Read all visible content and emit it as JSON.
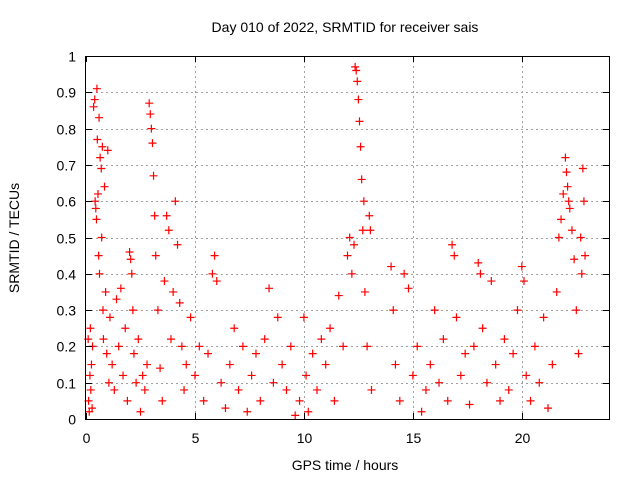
{
  "chart_data": {
    "type": "scatter",
    "title": "Day 010 of 2022, SRMTID for receiver sais",
    "xlabel": "GPS time / hours",
    "ylabel": "SRMTID / TECUs",
    "xlim": [
      0,
      24
    ],
    "ylim": [
      0,
      1
    ],
    "x_ticks": [
      0,
      5,
      10,
      15,
      20
    ],
    "x_tick_labels": [
      "0",
      "5",
      "10",
      "15",
      "20"
    ],
    "y_ticks": [
      0,
      0.1,
      0.2,
      0.3,
      0.4,
      0.5,
      0.6,
      0.7,
      0.8,
      0.9,
      1
    ],
    "y_tick_labels": [
      "0",
      "0.1",
      "0.2",
      "0.3",
      "0.4",
      "0.5",
      "0.6",
      "0.7",
      "0.8",
      "0.9",
      "1"
    ],
    "grid": true,
    "marker": "plus",
    "color": "#ff0000",
    "series": [
      {
        "name": "SRMTID",
        "points": [
          [
            0.1,
            0.22
          ],
          [
            0.12,
            0.05
          ],
          [
            0.15,
            0.02
          ],
          [
            0.18,
            0.12
          ],
          [
            0.2,
            0.25
          ],
          [
            0.22,
            0.08
          ],
          [
            0.25,
            0.15
          ],
          [
            0.28,
            0.03
          ],
          [
            0.3,
            0.2
          ],
          [
            0.35,
            0.86
          ],
          [
            0.4,
            0.88
          ],
          [
            0.42,
            0.6
          ],
          [
            0.45,
            0.58
          ],
          [
            0.48,
            0.55
          ],
          [
            0.5,
            0.91
          ],
          [
            0.52,
            0.77
          ],
          [
            0.55,
            0.62
          ],
          [
            0.58,
            0.45
          ],
          [
            0.6,
            0.83
          ],
          [
            0.62,
            0.4
          ],
          [
            0.65,
            0.72
          ],
          [
            0.7,
            0.69
          ],
          [
            0.72,
            0.5
          ],
          [
            0.75,
            0.75
          ],
          [
            0.78,
            0.3
          ],
          [
            0.8,
            0.22
          ],
          [
            0.85,
            0.64
          ],
          [
            0.9,
            0.35
          ],
          [
            0.95,
            0.18
          ],
          [
            1.0,
            0.74
          ],
          [
            1.05,
            0.1
          ],
          [
            1.1,
            0.28
          ],
          [
            1.2,
            0.15
          ],
          [
            1.3,
            0.08
          ],
          [
            1.4,
            0.33
          ],
          [
            1.5,
            0.2
          ],
          [
            1.6,
            0.36
          ],
          [
            1.7,
            0.12
          ],
          [
            1.8,
            0.25
          ],
          [
            1.9,
            0.05
          ],
          [
            2.0,
            0.46
          ],
          [
            2.05,
            0.44
          ],
          [
            2.1,
            0.4
          ],
          [
            2.15,
            0.3
          ],
          [
            2.2,
            0.18
          ],
          [
            2.3,
            0.1
          ],
          [
            2.4,
            0.22
          ],
          [
            2.5,
            0.02
          ],
          [
            2.6,
            0.12
          ],
          [
            2.7,
            0.08
          ],
          [
            2.8,
            0.15
          ],
          [
            2.9,
            0.87
          ],
          [
            2.95,
            0.84
          ],
          [
            3.0,
            0.8
          ],
          [
            3.05,
            0.76
          ],
          [
            3.1,
            0.67
          ],
          [
            3.15,
            0.56
          ],
          [
            3.2,
            0.45
          ],
          [
            3.3,
            0.3
          ],
          [
            3.4,
            0.14
          ],
          [
            3.5,
            0.05
          ],
          [
            3.6,
            0.38
          ],
          [
            3.7,
            0.56
          ],
          [
            3.8,
            0.52
          ],
          [
            3.9,
            0.22
          ],
          [
            4.0,
            0.35
          ],
          [
            4.1,
            0.6
          ],
          [
            4.2,
            0.48
          ],
          [
            4.3,
            0.32
          ],
          [
            4.4,
            0.2
          ],
          [
            4.5,
            0.08
          ],
          [
            4.6,
            0.15
          ],
          [
            4.8,
            0.28
          ],
          [
            5.0,
            0.12
          ],
          [
            5.2,
            0.2
          ],
          [
            5.4,
            0.05
          ],
          [
            5.6,
            0.18
          ],
          [
            5.8,
            0.4
          ],
          [
            5.9,
            0.45
          ],
          [
            6.0,
            0.38
          ],
          [
            6.2,
            0.1
          ],
          [
            6.4,
            0.03
          ],
          [
            6.6,
            0.15
          ],
          [
            6.8,
            0.25
          ],
          [
            7.0,
            0.08
          ],
          [
            7.2,
            0.2
          ],
          [
            7.4,
            0.02
          ],
          [
            7.6,
            0.12
          ],
          [
            7.8,
            0.18
          ],
          [
            8.0,
            0.05
          ],
          [
            8.2,
            0.22
          ],
          [
            8.4,
            0.36
          ],
          [
            8.6,
            0.1
          ],
          [
            8.8,
            0.28
          ],
          [
            9.0,
            0.15
          ],
          [
            9.2,
            0.08
          ],
          [
            9.4,
            0.2
          ],
          [
            9.6,
            0.01
          ],
          [
            9.8,
            0.05
          ],
          [
            10.0,
            0.28
          ],
          [
            10.1,
            0.12
          ],
          [
            10.2,
            0.02
          ],
          [
            10.4,
            0.18
          ],
          [
            10.6,
            0.08
          ],
          [
            10.8,
            0.22
          ],
          [
            11.0,
            0.15
          ],
          [
            11.2,
            0.25
          ],
          [
            11.4,
            0.05
          ],
          [
            11.6,
            0.34
          ],
          [
            11.8,
            0.2
          ],
          [
            12.0,
            0.45
          ],
          [
            12.1,
            0.5
          ],
          [
            12.2,
            0.4
          ],
          [
            12.3,
            0.48
          ],
          [
            12.35,
            0.97
          ],
          [
            12.4,
            0.96
          ],
          [
            12.45,
            0.93
          ],
          [
            12.5,
            0.88
          ],
          [
            12.55,
            0.82
          ],
          [
            12.6,
            0.75
          ],
          [
            12.65,
            0.66
          ],
          [
            12.7,
            0.52
          ],
          [
            12.75,
            0.6
          ],
          [
            12.8,
            0.35
          ],
          [
            12.9,
            0.2
          ],
          [
            13.0,
            0.56
          ],
          [
            13.05,
            0.52
          ],
          [
            13.1,
            0.08
          ],
          [
            14.0,
            0.42
          ],
          [
            14.1,
            0.3
          ],
          [
            14.2,
            0.15
          ],
          [
            14.4,
            0.05
          ],
          [
            14.6,
            0.4
          ],
          [
            14.8,
            0.36
          ],
          [
            15.0,
            0.12
          ],
          [
            15.2,
            0.2
          ],
          [
            15.4,
            0.02
          ],
          [
            15.6,
            0.08
          ],
          [
            15.8,
            0.15
          ],
          [
            16.0,
            0.3
          ],
          [
            16.2,
            0.1
          ],
          [
            16.4,
            0.22
          ],
          [
            16.6,
            0.05
          ],
          [
            16.8,
            0.48
          ],
          [
            16.9,
            0.45
          ],
          [
            17.0,
            0.28
          ],
          [
            17.2,
            0.12
          ],
          [
            17.4,
            0.18
          ],
          [
            17.6,
            0.04
          ],
          [
            17.8,
            0.2
          ],
          [
            18.0,
            0.43
          ],
          [
            18.1,
            0.4
          ],
          [
            18.2,
            0.25
          ],
          [
            18.4,
            0.1
          ],
          [
            18.6,
            0.38
          ],
          [
            18.8,
            0.15
          ],
          [
            19.0,
            0.05
          ],
          [
            19.2,
            0.22
          ],
          [
            19.4,
            0.08
          ],
          [
            19.6,
            0.18
          ],
          [
            19.8,
            0.3
          ],
          [
            20.0,
            0.42
          ],
          [
            20.1,
            0.38
          ],
          [
            20.2,
            0.12
          ],
          [
            20.4,
            0.05
          ],
          [
            20.6,
            0.2
          ],
          [
            20.8,
            0.1
          ],
          [
            21.0,
            0.28
          ],
          [
            21.2,
            0.03
          ],
          [
            21.4,
            0.15
          ],
          [
            21.6,
            0.35
          ],
          [
            21.7,
            0.5
          ],
          [
            21.8,
            0.55
          ],
          [
            21.9,
            0.62
          ],
          [
            22.0,
            0.72
          ],
          [
            22.05,
            0.68
          ],
          [
            22.1,
            0.64
          ],
          [
            22.15,
            0.6
          ],
          [
            22.2,
            0.58
          ],
          [
            22.3,
            0.52
          ],
          [
            22.4,
            0.44
          ],
          [
            22.5,
            0.3
          ],
          [
            22.6,
            0.18
          ],
          [
            22.7,
            0.5
          ],
          [
            22.75,
            0.4
          ],
          [
            22.8,
            0.69
          ],
          [
            22.85,
            0.6
          ],
          [
            22.9,
            0.45
          ]
        ]
      }
    ]
  }
}
